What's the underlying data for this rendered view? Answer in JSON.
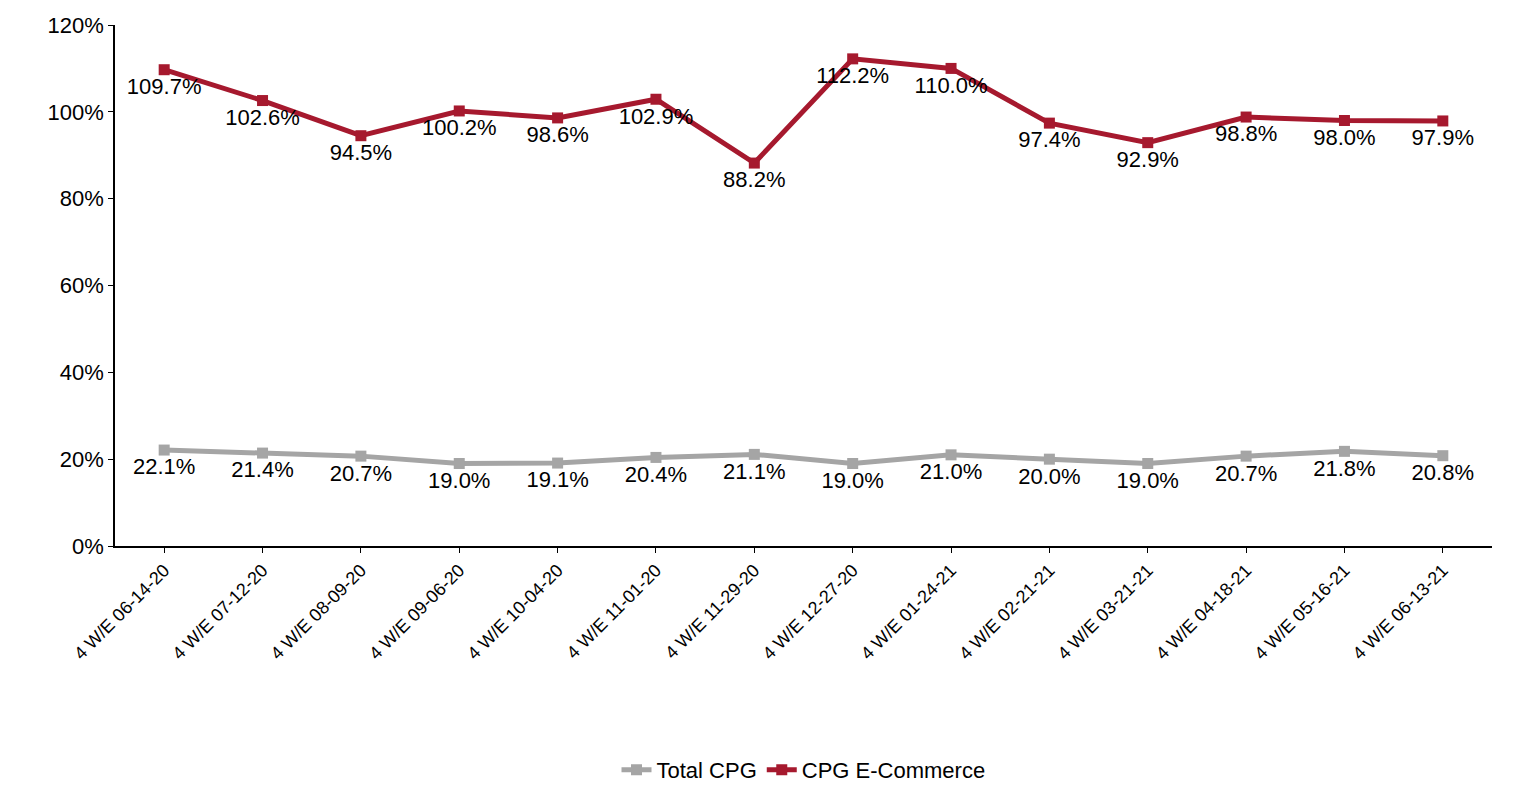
{
  "chart_data": {
    "type": "line",
    "categories": [
      "4 W/E 06-14-20",
      "4 W/E 07-12-20",
      "4 W/E 08-09-20",
      "4 W/E 09-06-20",
      "4 W/E 10-04-20",
      "4 W/E 11-01-20",
      "4 W/E 11-29-20",
      "4 W/E 12-27-20",
      "4 W/E 01-24-21",
      "4 W/E 02-21-21",
      "4 W/E 03-21-21",
      "4 W/E 04-18-21",
      "4 W/E 05-16-21",
      "4 W/E 06-13-21"
    ],
    "series": [
      {
        "name": "Total CPG",
        "color": "#A5A5A5",
        "marker": "square",
        "line_style": "solid",
        "values": [
          22.1,
          21.4,
          20.7,
          19.0,
          19.1,
          20.4,
          21.1,
          19.0,
          21.0,
          20.0,
          19.0,
          20.7,
          21.8,
          20.8
        ],
        "value_labels": [
          "22.1%",
          "21.4%",
          "20.7%",
          "19.0%",
          "19.1%",
          "20.4%",
          "21.1%",
          "19.0%",
          "21.0%",
          "20.0%",
          "19.0%",
          "20.7%",
          "21.8%",
          "20.8%"
        ]
      },
      {
        "name": "CPG E-Commerce",
        "color": "#A6192E",
        "marker": "square",
        "line_style": "solid",
        "values": [
          109.7,
          102.6,
          94.5,
          100.2,
          98.6,
          102.9,
          88.2,
          112.2,
          110.0,
          97.4,
          92.9,
          98.8,
          98.0,
          97.9
        ],
        "value_labels": [
          "109.7%",
          "102.6%",
          "94.5%",
          "100.2%",
          "98.6%",
          "102.9%",
          "88.2%",
          "112.2%",
          "110.0%",
          "97.4%",
          "92.9%",
          "98.8%",
          "98.0%",
          "97.9%"
        ]
      }
    ],
    "ylim": [
      0,
      120
    ],
    "yticks": [
      {
        "value": 0,
        "label": "0%"
      },
      {
        "value": 20,
        "label": "20%"
      },
      {
        "value": 40,
        "label": "40%"
      },
      {
        "value": 60,
        "label": "60%"
      },
      {
        "value": 80,
        "label": "80%"
      },
      {
        "value": 100,
        "label": "100%"
      },
      {
        "value": 120,
        "label": "120%"
      }
    ],
    "grid": false,
    "legend": "bottom",
    "data_labels": true
  }
}
